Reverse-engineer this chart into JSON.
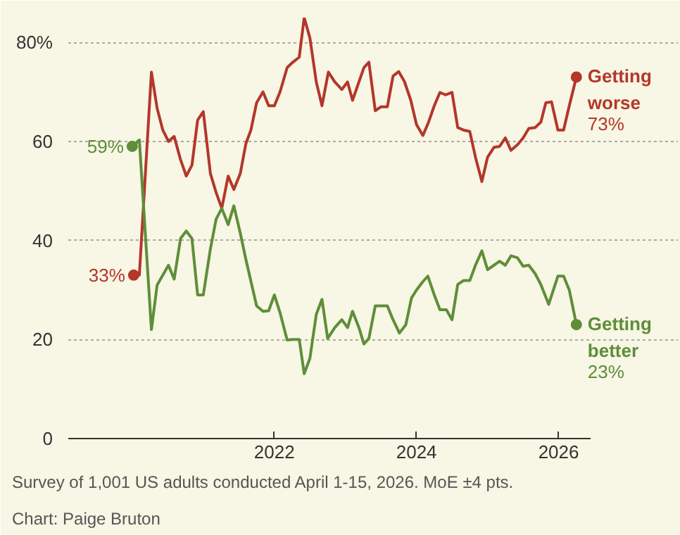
{
  "chart_data": {
    "type": "line",
    "annotations": [
      "Survey of 1,001 US adults conducted April 1-15, 2026. MoE ±4 pts.",
      "Chart: Paige Bruton"
    ],
    "xlim": [
      2019.1,
      2026.45
    ],
    "xticks": [
      2022,
      2024,
      2026
    ],
    "ylim": [
      0,
      85
    ],
    "yticks": [
      0,
      20,
      40,
      60,
      {
        "value": 80,
        "label": "80%"
      }
    ],
    "grid": "y",
    "legend": false,
    "line_style": "solid",
    "series": [
      {
        "name": "Getting worse",
        "color": "#b3372b",
        "x": [
          2020.02,
          2020.1,
          2020.27,
          2020.35,
          2020.43,
          2020.51,
          2020.59,
          2020.68,
          2020.76,
          2020.84,
          2020.92,
          2021.0,
          2021.1,
          2021.18,
          2021.26,
          2021.35,
          2021.43,
          2021.52,
          2021.6,
          2021.67,
          2021.75,
          2021.84,
          2021.92,
          2022.0,
          2022.08,
          2022.18,
          2022.26,
          2022.35,
          2022.42,
          2022.5,
          2022.59,
          2022.67,
          2022.76,
          2022.85,
          2022.95,
          2023.03,
          2023.1,
          2023.19,
          2023.26,
          2023.33,
          2023.42,
          2023.5,
          2023.59,
          2023.67,
          2023.75,
          2023.83,
          2023.92,
          2024.0,
          2024.09,
          2024.17,
          2024.25,
          2024.33,
          2024.41,
          2024.5,
          2024.58,
          2024.66,
          2024.75,
          2024.83,
          2024.92,
          2025.0,
          2025.09,
          2025.17,
          2025.25,
          2025.33,
          2025.42,
          2025.5,
          2025.58,
          2025.67,
          2025.75,
          2025.82,
          2025.9,
          2025.99,
          2026.07,
          2026.15,
          2026.25
        ],
        "values": [
          33,
          33,
          74,
          66.7,
          62.3,
          60,
          61,
          56.3,
          53,
          55.2,
          64.3,
          66,
          53.5,
          49.7,
          46.5,
          53,
          50.3,
          53.5,
          59.6,
          62.3,
          67.8,
          70,
          67.2,
          67.2,
          70,
          74.9,
          76,
          77,
          85,
          80.9,
          72,
          67.2,
          74,
          72,
          70.5,
          72,
          68.3,
          72,
          74.9,
          76,
          66.2,
          67,
          67,
          73.2,
          74.1,
          72.1,
          68.3,
          63.4,
          61.2,
          63.9,
          67.2,
          69.9,
          69.4,
          69.9,
          62.8,
          62.3,
          62,
          56.8,
          51.9,
          56.8,
          58.8,
          59,
          60.7,
          58.2,
          59.3,
          60.7,
          62.6,
          62.8,
          63.9,
          67.8,
          68,
          62.3,
          62.3,
          67.2,
          73
        ],
        "value_labels": [
          "33%",
          null,
          null,
          null,
          null,
          null,
          null,
          null,
          null,
          null,
          null,
          null,
          null,
          null,
          null,
          null,
          null,
          null,
          null,
          null,
          null,
          null,
          null,
          null,
          null,
          null,
          null,
          null,
          null,
          null,
          null,
          null,
          null,
          null,
          null,
          null,
          null,
          null,
          null,
          null,
          null,
          null,
          null,
          null,
          null,
          null,
          null,
          null,
          null,
          null,
          null,
          null,
          null,
          null,
          null,
          null,
          null,
          null,
          null,
          null,
          null,
          null,
          null,
          null,
          null,
          null,
          null,
          null,
          null,
          null,
          null,
          null,
          null,
          null,
          "73%"
        ]
      },
      {
        "name": "Getting better",
        "color": "#5e8e3a",
        "x": [
          2020.0,
          2020.1,
          2020.27,
          2020.35,
          2020.51,
          2020.59,
          2020.68,
          2020.76,
          2020.84,
          2020.92,
          2021.0,
          2021.1,
          2021.18,
          2021.26,
          2021.35,
          2021.43,
          2021.52,
          2021.6,
          2021.75,
          2021.84,
          2021.92,
          2022.0,
          2022.08,
          2022.18,
          2022.26,
          2022.35,
          2022.42,
          2022.5,
          2022.59,
          2022.67,
          2022.75,
          2022.85,
          2022.95,
          2023.03,
          2023.1,
          2023.19,
          2023.26,
          2023.33,
          2023.42,
          2023.59,
          2023.67,
          2023.76,
          2023.85,
          2023.93,
          2024.0,
          2024.09,
          2024.16,
          2024.25,
          2024.33,
          2024.42,
          2024.5,
          2024.58,
          2024.66,
          2024.75,
          2024.83,
          2024.92,
          2025.0,
          2025.09,
          2025.17,
          2025.25,
          2025.33,
          2025.42,
          2025.5,
          2025.58,
          2025.67,
          2025.75,
          2025.86,
          2025.99,
          2026.07,
          2026.15,
          2026.25
        ],
        "values": [
          59,
          60.3,
          22,
          31,
          35,
          32.2,
          40.4,
          41.9,
          40.4,
          29,
          29,
          38.3,
          44.3,
          46.5,
          43.2,
          47,
          41.5,
          36.1,
          26.8,
          25.7,
          25.8,
          29,
          25.4,
          19.9,
          20,
          20,
          13.1,
          16.2,
          25.1,
          28.1,
          20.2,
          22.4,
          24,
          22.4,
          25.7,
          22.4,
          19.1,
          20.2,
          26.8,
          26.8,
          24,
          21.3,
          23,
          28.4,
          30,
          31.7,
          32.8,
          29,
          26,
          26,
          24,
          31.1,
          31.9,
          31.9,
          35,
          37.9,
          34.1,
          35,
          35.8,
          35,
          36.9,
          36.5,
          34.8,
          35,
          33.3,
          31.1,
          27.1,
          32.8,
          32.8,
          30,
          23
        ],
        "value_labels": [
          "59%",
          null,
          null,
          null,
          null,
          null,
          null,
          null,
          null,
          null,
          null,
          null,
          null,
          null,
          null,
          null,
          null,
          null,
          null,
          null,
          null,
          null,
          null,
          null,
          null,
          null,
          null,
          null,
          null,
          null,
          null,
          null,
          null,
          null,
          null,
          null,
          null,
          null,
          null,
          null,
          null,
          null,
          null,
          null,
          null,
          null,
          null,
          null,
          null,
          null,
          null,
          null,
          null,
          null,
          null,
          null,
          null,
          null,
          null,
          null,
          null,
          null,
          null,
          null,
          null,
          null,
          null,
          null,
          null,
          null,
          "23%"
        ]
      }
    ]
  }
}
